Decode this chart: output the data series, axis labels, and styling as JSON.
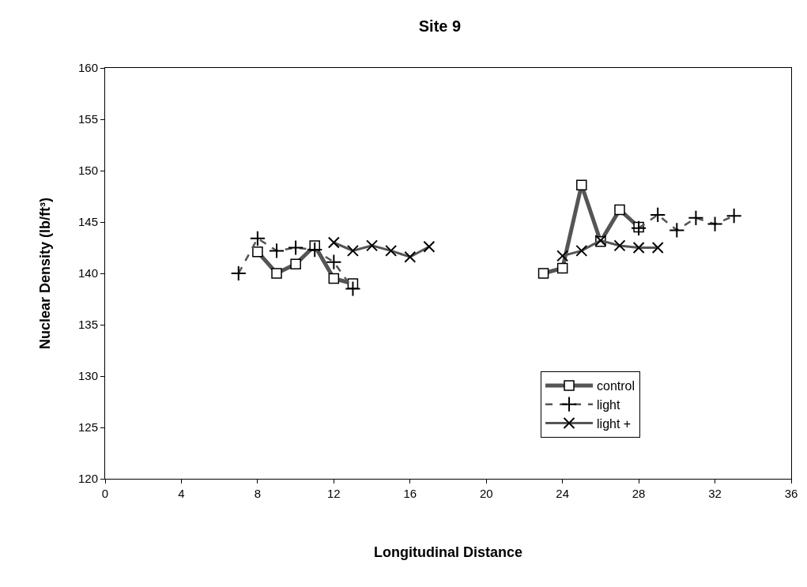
{
  "chart_data": {
    "type": "line",
    "title": "Site 9",
    "xlabel": "Longitudinal Distance",
    "ylabel": "Nuclear Density (lb/ft³)",
    "xlim": [
      0,
      36
    ],
    "xticks": [
      0,
      4,
      8,
      12,
      16,
      20,
      24,
      28,
      32,
      36
    ],
    "ylim": [
      120,
      160
    ],
    "yticks": [
      120,
      125,
      130,
      135,
      140,
      145,
      150,
      155,
      160
    ],
    "grid": false,
    "legend": "bottom right",
    "series": [
      {
        "name": "control",
        "color": "#555555",
        "marker": "square",
        "line_style": "solid",
        "x": [
          8,
          9,
          10,
          11,
          12,
          13,
          null,
          23,
          24,
          25,
          26,
          27,
          28
        ],
        "values": [
          142.1,
          140.0,
          140.9,
          142.7,
          139.5,
          139.0,
          null,
          140.0,
          140.5,
          148.6,
          143.1,
          146.2,
          144.5
        ]
      },
      {
        "name": "light",
        "color": "#555555",
        "marker": "cross",
        "line_style": "dashed",
        "x": [
          7,
          8,
          9,
          10,
          11,
          12,
          13,
          null,
          28,
          29,
          30,
          31,
          32,
          33
        ],
        "values": [
          140.0,
          143.4,
          142.2,
          142.5,
          142.3,
          141.1,
          138.5,
          null,
          144.4,
          145.7,
          144.2,
          145.4,
          144.8,
          145.6
        ]
      },
      {
        "name": "light +",
        "color": "#555555",
        "marker": "x",
        "line_style": "solid",
        "x": [
          12,
          13,
          14,
          15,
          16,
          17,
          null,
          24,
          25,
          26,
          27,
          28,
          29
        ],
        "values": [
          143.0,
          142.2,
          142.7,
          142.2,
          141.6,
          142.6,
          null,
          141.7,
          142.2,
          143.2,
          142.7,
          142.5,
          142.5
        ]
      }
    ]
  }
}
